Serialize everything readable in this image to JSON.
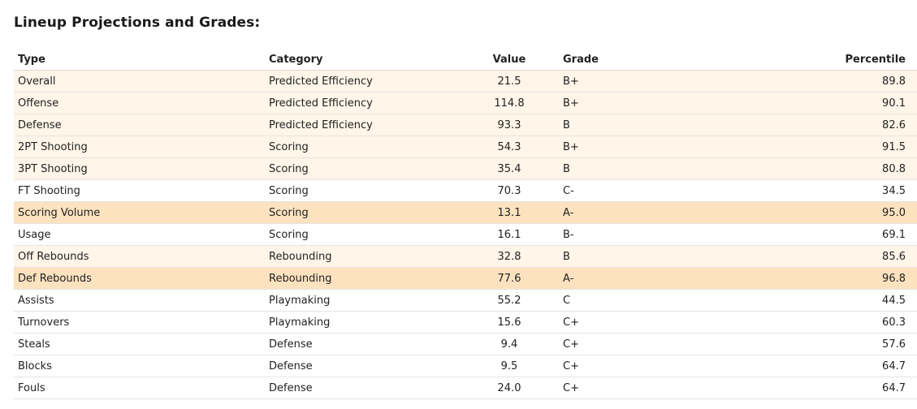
{
  "title": "Lineup Projections and Grades:",
  "table": {
    "headers": {
      "type": "Type",
      "category": "Category",
      "value": "Value",
      "grade": "Grade",
      "percentile": "Percentile"
    },
    "rows": [
      {
        "type": "Overall",
        "category": "Predicted Efficiency",
        "value": "21.5",
        "grade": "B+",
        "percentile": "89.8",
        "highlight": "light"
      },
      {
        "type": "Offense",
        "category": "Predicted Efficiency",
        "value": "114.8",
        "grade": "B+",
        "percentile": "90.1",
        "highlight": "light"
      },
      {
        "type": "Defense",
        "category": "Predicted Efficiency",
        "value": "93.3",
        "grade": "B",
        "percentile": "82.6",
        "highlight": "light"
      },
      {
        "type": "2PT Shooting",
        "category": "Scoring",
        "value": "54.3",
        "grade": "B+",
        "percentile": "91.5",
        "highlight": "light"
      },
      {
        "type": "3PT Shooting",
        "category": "Scoring",
        "value": "35.4",
        "grade": "B",
        "percentile": "80.8",
        "highlight": "light"
      },
      {
        "type": "FT Shooting",
        "category": "Scoring",
        "value": "70.3",
        "grade": "C-",
        "percentile": "34.5",
        "highlight": "none"
      },
      {
        "type": "Scoring Volume",
        "category": "Scoring",
        "value": "13.1",
        "grade": "A-",
        "percentile": "95.0",
        "highlight": "strong"
      },
      {
        "type": "Usage",
        "category": "Scoring",
        "value": "16.1",
        "grade": "B-",
        "percentile": "69.1",
        "highlight": "none"
      },
      {
        "type": "Off Rebounds",
        "category": "Rebounding",
        "value": "32.8",
        "grade": "B",
        "percentile": "85.6",
        "highlight": "light"
      },
      {
        "type": "Def Rebounds",
        "category": "Rebounding",
        "value": "77.6",
        "grade": "A-",
        "percentile": "96.8",
        "highlight": "strong"
      },
      {
        "type": "Assists",
        "category": "Playmaking",
        "value": "55.2",
        "grade": "C",
        "percentile": "44.5",
        "highlight": "none"
      },
      {
        "type": "Turnovers",
        "category": "Playmaking",
        "value": "15.6",
        "grade": "C+",
        "percentile": "60.3",
        "highlight": "none"
      },
      {
        "type": "Steals",
        "category": "Defense",
        "value": "9.4",
        "grade": "C+",
        "percentile": "57.6",
        "highlight": "none"
      },
      {
        "type": "Blocks",
        "category": "Defense",
        "value": "9.5",
        "grade": "C+",
        "percentile": "64.7",
        "highlight": "none"
      },
      {
        "type": "Fouls",
        "category": "Defense",
        "value": "24.0",
        "grade": "C+",
        "percentile": "64.7",
        "highlight": "none"
      }
    ]
  },
  "colors": {
    "highlight_light": "#fff5e8",
    "highlight_strong": "#fde2bf",
    "row_border": "#e4e4e4"
  }
}
